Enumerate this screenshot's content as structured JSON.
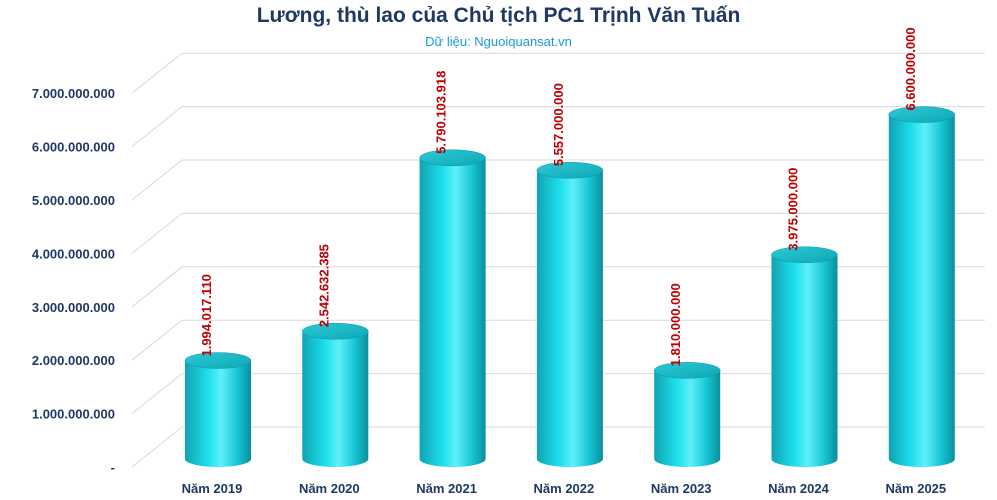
{
  "chart_data": {
    "type": "bar",
    "title": "Lương, thù lao của Chủ tịch PC1 Trịnh Văn Tuấn",
    "subtitle": "Dữ liệu: Nguoiquansat.vn",
    "categories": [
      "Năm 2019",
      "Năm 2020",
      "Năm 2021",
      "Năm 2022",
      "Năm 2023",
      "Năm 2024",
      "Năm 2025"
    ],
    "values": [
      1994017110,
      2542632385,
      5790103918,
      5557000000,
      1810000000,
      3975000000,
      6600000000
    ],
    "data_labels": [
      "1.994.017.110",
      "2.542.632.385",
      "5.790.103.918",
      "5.557.000.000",
      "1.810.000.000",
      "3.975.000.000",
      "6.600.000.000"
    ],
    "y_ticks": [
      {
        "value": 0,
        "label": "-"
      },
      {
        "value": 1000000000,
        "label": "1.000.000.000"
      },
      {
        "value": 2000000000,
        "label": "2.000.000.000"
      },
      {
        "value": 3000000000,
        "label": "3.000.000.000"
      },
      {
        "value": 4000000000,
        "label": "4.000.000.000"
      },
      {
        "value": 5000000000,
        "label": "5.000.000.000"
      },
      {
        "value": 6000000000,
        "label": "6.000.000.000"
      },
      {
        "value": 7000000000,
        "label": "7.000.000.000"
      }
    ],
    "ylim": [
      0,
      7000000000
    ],
    "grid": true,
    "bar_style": "3d-cylinder",
    "bar_color": "#1fd3e0",
    "label_color": "#c00000"
  }
}
